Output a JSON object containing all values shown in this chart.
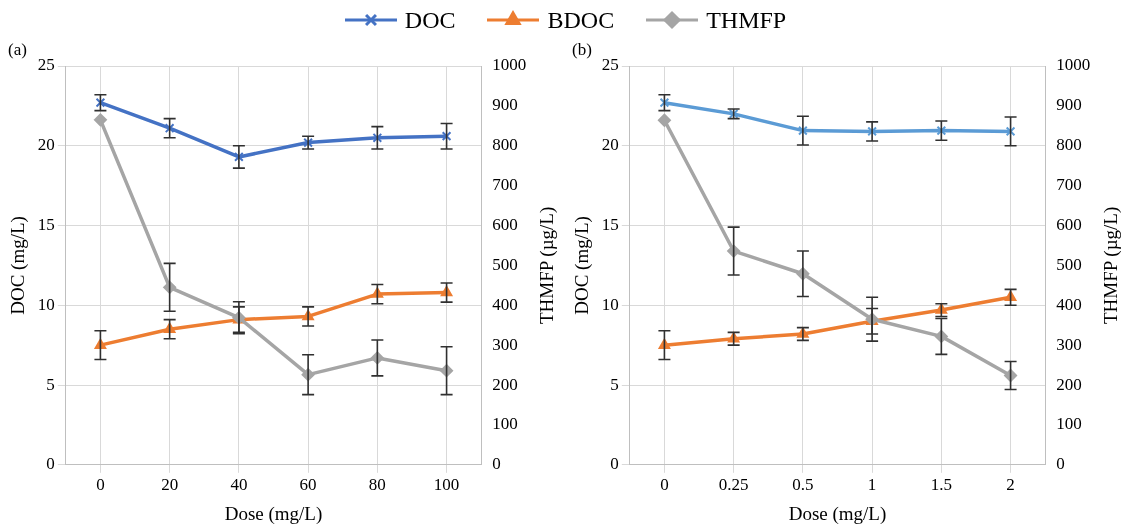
{
  "chart_data": [
    {
      "type": "line",
      "title": "(a)",
      "xlabel": "Dose (mg/L)",
      "ylabel": "DOC (mg/L)",
      "y2label": "THMFP (µg/L)",
      "categories": [
        "0",
        "20",
        "40",
        "60",
        "80",
        "100"
      ],
      "series": [
        {
          "name": "DOC",
          "color": "#4472c4",
          "marker": "cross",
          "values": [
            22.7,
            21.1,
            19.3,
            20.2,
            20.5,
            20.6
          ],
          "errors": [
            0.5,
            0.6,
            0.7,
            0.4,
            0.7,
            0.8
          ]
        },
        {
          "name": "BDOC",
          "color": "#ed7d31",
          "marker": "triangle",
          "values": [
            7.5,
            8.5,
            9.1,
            9.3,
            10.7,
            10.8
          ],
          "errors": [
            0.9,
            0.6,
            0.8,
            0.6,
            0.6,
            0.6
          ]
        },
        {
          "name": "THMFP",
          "color": "#a5a5a5",
          "marker": "diamond",
          "axis": "y2",
          "values": [
            865,
            445,
            369,
            226,
            268,
            236
          ],
          "errors": [
            null,
            60,
            40,
            50,
            45,
            60
          ]
        }
      ],
      "ylim": [
        0,
        25
      ],
      "yticks": [
        0,
        5,
        10,
        15,
        20,
        25
      ],
      "y2lim": [
        0,
        1000
      ],
      "y2ticks": [
        0,
        100,
        200,
        300,
        400,
        500,
        600,
        700,
        800,
        900,
        1000
      ],
      "grid": true,
      "legend": "top"
    },
    {
      "type": "line",
      "title": "(b)",
      "xlabel": "Dose (mg/L)",
      "ylabel": "DOC (mg/L)",
      "y2label": "THMFP (µg/L)",
      "categories": [
        "0",
        "0.25",
        "0.5",
        "1",
        "1.5",
        "2"
      ],
      "series": [
        {
          "color": "#5b9bd5",
          "marker": "cross",
          "values": [
            22.7,
            22.0,
            20.95,
            20.9,
            20.95,
            20.9
          ],
          "errors": [
            0.5,
            0.3,
            0.9,
            0.6,
            0.6,
            0.9
          ]
        },
        {
          "color": "#ed7d31",
          "marker": "triangle",
          "values": [
            7.5,
            7.9,
            8.2,
            9.0,
            9.7,
            10.5
          ],
          "errors": [
            0.9,
            0.4,
            0.4,
            0.8,
            0.4,
            0.5
          ]
        },
        {
          "color": "#a5a5a5",
          "marker": "diamond",
          "axis": "y2",
          "values": [
            864,
            536,
            479,
            365,
            322,
            224
          ],
          "errors": [
            null,
            60,
            57,
            55,
            45,
            35
          ]
        }
      ],
      "ylim": [
        0,
        25
      ],
      "yticks": [
        0,
        5,
        10,
        15,
        20,
        25
      ],
      "y2lim": [
        0,
        1000
      ],
      "y2ticks": [
        0,
        100,
        200,
        300,
        400,
        500,
        600,
        700,
        800,
        900,
        1000
      ],
      "grid": true
    }
  ]
}
